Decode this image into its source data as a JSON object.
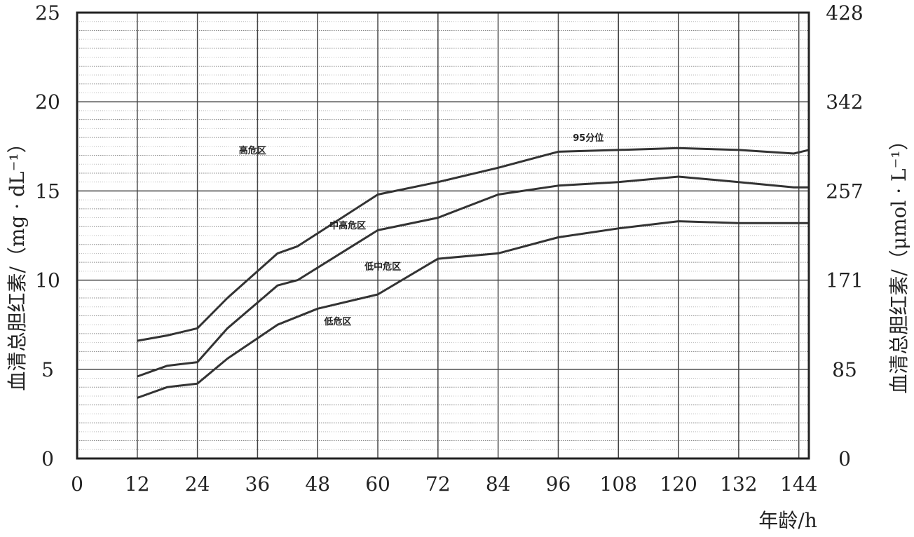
{
  "chart_data": {
    "type": "line",
    "xlabel": "年龄/h",
    "ylabel_left": "血清总胆红素/（mg · dL⁻¹）",
    "ylabel_right": "血清总胆红素/（μmol · L⁻¹）",
    "xlim": [
      0,
      146
    ],
    "ylim_left": [
      0,
      25
    ],
    "ylim_right": [
      0,
      428
    ],
    "x_ticks": [
      0,
      12,
      24,
      36,
      48,
      60,
      72,
      84,
      96,
      108,
      120,
      132,
      144
    ],
    "y_ticks_left": [
      0,
      5,
      10,
      15,
      20,
      25
    ],
    "y_ticks_right_labels": [
      "0",
      "85",
      "171",
      "257",
      "342",
      "428"
    ],
    "grid": true,
    "series": [
      {
        "name": "95分位",
        "points": [
          [
            12,
            6.6
          ],
          [
            18,
            6.9
          ],
          [
            24,
            7.3
          ],
          [
            30,
            9.0
          ],
          [
            40,
            11.5
          ],
          [
            44,
            11.9
          ],
          [
            60,
            14.8
          ],
          [
            72,
            15.5
          ],
          [
            84,
            16.3
          ],
          [
            96,
            17.2
          ],
          [
            108,
            17.3
          ],
          [
            120,
            17.4
          ],
          [
            132,
            17.3
          ],
          [
            143,
            17.1
          ],
          [
            146,
            17.3
          ]
        ]
      },
      {
        "name": "",
        "points": [
          [
            12,
            4.6
          ],
          [
            18,
            5.2
          ],
          [
            24,
            5.4
          ],
          [
            30,
            7.3
          ],
          [
            40,
            9.7
          ],
          [
            44,
            10.0
          ],
          [
            60,
            12.8
          ],
          [
            72,
            13.5
          ],
          [
            84,
            14.8
          ],
          [
            96,
            15.3
          ],
          [
            108,
            15.5
          ],
          [
            120,
            15.8
          ],
          [
            132,
            15.5
          ],
          [
            143,
            15.2
          ],
          [
            146,
            15.2
          ]
        ]
      },
      {
        "name": "",
        "points": [
          [
            12,
            3.4
          ],
          [
            18,
            4.0
          ],
          [
            24,
            4.2
          ],
          [
            30,
            5.6
          ],
          [
            40,
            7.5
          ],
          [
            48,
            8.4
          ],
          [
            60,
            9.2
          ],
          [
            72,
            11.2
          ],
          [
            84,
            11.5
          ],
          [
            96,
            12.4
          ],
          [
            108,
            12.9
          ],
          [
            120,
            13.3
          ],
          [
            132,
            13.2
          ],
          [
            143,
            13.2
          ],
          [
            146,
            13.2
          ]
        ]
      }
    ],
    "annotations": [
      {
        "text": "高危区",
        "x": 35,
        "y": 17.1
      },
      {
        "text": "95分位",
        "x": 102,
        "y": 17.8
      },
      {
        "text": "中高危区",
        "x": 54,
        "y": 12.9
      },
      {
        "text": "低中危区",
        "x": 61,
        "y": 10.6
      },
      {
        "text": "低危区",
        "x": 52,
        "y": 7.5
      }
    ]
  }
}
